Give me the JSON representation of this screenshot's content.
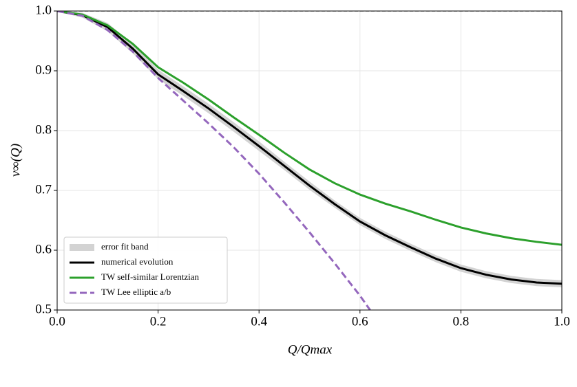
{
  "chart_data": {
    "type": "line",
    "xlabel": "Q/Qmax",
    "ylabel": "v∞(Q)",
    "xlim": [
      0,
      1
    ],
    "ylim": [
      0.5,
      1.0
    ],
    "xticks": [
      {
        "value": 0,
        "label": "0.0"
      },
      0.2,
      0.4,
      0.6,
      0.8,
      {
        "value": 1,
        "label": "1.0"
      }
    ],
    "yticks": [
      0.5,
      0.6,
      0.7,
      0.8,
      0.9,
      {
        "value": 1,
        "label": "1.0"
      }
    ],
    "grid": true,
    "legend": "lower left",
    "reference_line": {
      "value": 1,
      "color": "#000000"
    },
    "series": [
      {
        "name": "error fit band",
        "kind": "band",
        "color": "#d3d3d3",
        "x": [
          0,
          0.05,
          0.1,
          0.15,
          0.2,
          0.25,
          0.3,
          0.35,
          0.4,
          0.45,
          0.5,
          0.55,
          0.6,
          0.65,
          0.7,
          0.75,
          0.8,
          0.85,
          0.9,
          0.95,
          1
        ],
        "lower": [
          0.999,
          0.989,
          0.966,
          0.929,
          0.886,
          0.858,
          0.829,
          0.798,
          0.766,
          0.734,
          0.701,
          0.671,
          0.642,
          0.619,
          0.599,
          0.58,
          0.564,
          0.553,
          0.545,
          0.54,
          0.538
        ],
        "upper": [
          1.0,
          0.997,
          0.98,
          0.945,
          0.902,
          0.874,
          0.845,
          0.814,
          0.782,
          0.748,
          0.715,
          0.683,
          0.654,
          0.631,
          0.611,
          0.592,
          0.576,
          0.565,
          0.557,
          0.552,
          0.55
        ]
      },
      {
        "name": "numerical evolution",
        "kind": "line",
        "color": "#000000",
        "dash": false,
        "x": [
          0,
          0.05,
          0.1,
          0.15,
          0.2,
          0.25,
          0.3,
          0.35,
          0.4,
          0.45,
          0.5,
          0.55,
          0.6,
          0.65,
          0.7,
          0.75,
          0.8,
          0.85,
          0.9,
          0.95,
          1
        ],
        "values": [
          1.0,
          0.993,
          0.973,
          0.937,
          0.894,
          0.866,
          0.837,
          0.806,
          0.774,
          0.741,
          0.708,
          0.677,
          0.648,
          0.625,
          0.605,
          0.586,
          0.57,
          0.559,
          0.551,
          0.546,
          0.544
        ]
      },
      {
        "name": "TW self-similar Lorentzian",
        "kind": "line",
        "color": "#2ca02c",
        "dash": false,
        "x": [
          0,
          0.05,
          0.1,
          0.15,
          0.2,
          0.25,
          0.3,
          0.35,
          0.4,
          0.45,
          0.5,
          0.55,
          0.6,
          0.65,
          0.7,
          0.75,
          0.8,
          0.85,
          0.9,
          0.95,
          1
        ],
        "values": [
          1.0,
          0.994,
          0.976,
          0.945,
          0.906,
          0.88,
          0.852,
          0.822,
          0.793,
          0.763,
          0.735,
          0.712,
          0.693,
          0.678,
          0.665,
          0.651,
          0.638,
          0.628,
          0.62,
          0.614,
          0.609
        ]
      },
      {
        "name": "TW Lee elliptic a/b",
        "kind": "line",
        "color": "#9467bd",
        "dash": true,
        "x": [
          0,
          0.05,
          0.1,
          0.15,
          0.2,
          0.25,
          0.3,
          0.35,
          0.4,
          0.45,
          0.5,
          0.55,
          0.6,
          0.62
        ],
        "values": [
          1.0,
          0.992,
          0.968,
          0.932,
          0.888,
          0.85,
          0.812,
          0.772,
          0.728,
          0.68,
          0.63,
          0.578,
          0.524,
          0.5
        ]
      }
    ]
  }
}
